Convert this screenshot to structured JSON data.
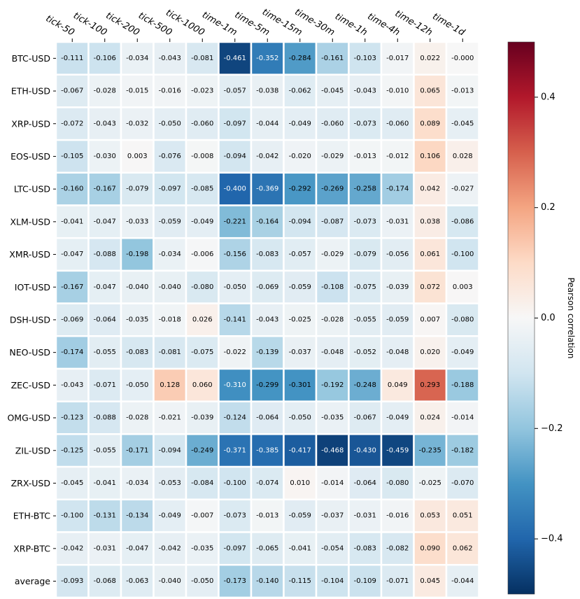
{
  "chart_data": {
    "type": "heatmap",
    "columns": [
      "tick-50",
      "tick-100",
      "tick-200",
      "tick-500",
      "tick-1000",
      "time-1m",
      "time-5m",
      "time-15m",
      "time-30m",
      "time-1h",
      "time-4h",
      "time-12h",
      "time-1d"
    ],
    "rows": [
      "BTC-USD",
      "ETH-USD",
      "XRP-USD",
      "EOS-USD",
      "LTC-USD",
      "XLM-USD",
      "XMR-USD",
      "IOT-USD",
      "DSH-USD",
      "NEO-USD",
      "ZEC-USD",
      "OMG-USD",
      "ZIL-USD",
      "ZRX-USD",
      "ETH-BTC",
      "XRP-BTC",
      "average"
    ],
    "values": [
      [
        -0.111,
        -0.106,
        -0.034,
        -0.043,
        -0.081,
        -0.461,
        -0.352,
        -0.284,
        -0.161,
        -0.103,
        -0.017,
        0.022,
        -0.0
      ],
      [
        -0.067,
        -0.028,
        -0.015,
        -0.016,
        -0.023,
        -0.057,
        -0.038,
        -0.062,
        -0.045,
        -0.043,
        -0.01,
        0.065,
        -0.013
      ],
      [
        -0.072,
        -0.043,
        -0.032,
        -0.05,
        -0.06,
        -0.097,
        -0.044,
        -0.049,
        -0.06,
        -0.073,
        -0.06,
        0.089,
        -0.045
      ],
      [
        -0.105,
        -0.03,
        0.003,
        -0.076,
        -0.008,
        -0.094,
        -0.042,
        -0.02,
        -0.029,
        -0.013,
        -0.012,
        0.106,
        0.028
      ],
      [
        -0.16,
        -0.167,
        -0.079,
        -0.097,
        -0.085,
        -0.4,
        -0.369,
        -0.292,
        -0.269,
        -0.258,
        -0.174,
        0.042,
        -0.027
      ],
      [
        -0.041,
        -0.047,
        -0.033,
        -0.059,
        -0.049,
        -0.221,
        -0.164,
        -0.094,
        -0.087,
        -0.073,
        -0.031,
        0.038,
        -0.086
      ],
      [
        -0.047,
        -0.088,
        -0.198,
        -0.034,
        -0.006,
        -0.156,
        -0.083,
        -0.057,
        -0.029,
        -0.079,
        -0.056,
        0.061,
        -0.1
      ],
      [
        -0.167,
        -0.047,
        -0.04,
        -0.04,
        -0.08,
        -0.05,
        -0.069,
        -0.059,
        -0.108,
        -0.075,
        -0.039,
        0.072,
        0.003
      ],
      [
        -0.069,
        -0.064,
        -0.035,
        -0.018,
        0.026,
        -0.141,
        -0.043,
        -0.025,
        -0.028,
        -0.055,
        -0.059,
        0.007,
        -0.08
      ],
      [
        -0.174,
        -0.055,
        -0.083,
        -0.081,
        -0.075,
        -0.022,
        -0.139,
        -0.037,
        -0.048,
        -0.052,
        -0.048,
        0.02,
        -0.049
      ],
      [
        -0.043,
        -0.071,
        -0.05,
        0.128,
        0.06,
        -0.31,
        -0.299,
        -0.301,
        -0.192,
        -0.248,
        0.049,
        0.293,
        -0.188
      ],
      [
        -0.123,
        -0.088,
        -0.028,
        -0.021,
        -0.039,
        -0.124,
        -0.064,
        -0.05,
        -0.035,
        -0.067,
        -0.049,
        0.024,
        -0.014
      ],
      [
        -0.125,
        -0.055,
        -0.171,
        -0.094,
        -0.249,
        -0.371,
        -0.385,
        -0.417,
        -0.468,
        -0.43,
        -0.459,
        -0.235,
        -0.182
      ],
      [
        -0.045,
        -0.041,
        -0.034,
        -0.053,
        -0.084,
        -0.1,
        -0.074,
        0.01,
        -0.014,
        -0.064,
        -0.08,
        -0.025,
        -0.07
      ],
      [
        -0.1,
        -0.131,
        -0.134,
        -0.049,
        -0.007,
        -0.073,
        -0.013,
        -0.059,
        -0.037,
        -0.031,
        -0.016,
        0.053,
        0.051
      ],
      [
        -0.042,
        -0.031,
        -0.047,
        -0.042,
        -0.035,
        -0.097,
        -0.065,
        -0.041,
        -0.054,
        -0.083,
        -0.082,
        0.09,
        0.062
      ],
      [
        -0.093,
        -0.068,
        -0.063,
        -0.04,
        -0.05,
        -0.173,
        -0.14,
        -0.115,
        -0.104,
        -0.109,
        -0.071,
        0.045,
        -0.044
      ]
    ],
    "value_labels": [
      [
        "-0.111",
        "-0.106",
        "-0.034",
        "-0.043",
        "-0.081",
        "-0.461",
        "-0.352",
        "-0.284",
        "-0.161",
        "-0.103",
        "-0.017",
        "0.022",
        "-0.000"
      ],
      [
        "-0.067",
        "-0.028",
        "-0.015",
        "-0.016",
        "-0.023",
        "-0.057",
        "-0.038",
        "-0.062",
        "-0.045",
        "-0.043",
        "-0.010",
        "0.065",
        "-0.013"
      ],
      [
        "-0.072",
        "-0.043",
        "-0.032",
        "-0.050",
        "-0.060",
        "-0.097",
        "-0.044",
        "-0.049",
        "-0.060",
        "-0.073",
        "-0.060",
        "0.089",
        "-0.045"
      ],
      [
        "-0.105",
        "-0.030",
        "0.003",
        "-0.076",
        "-0.008",
        "-0.094",
        "-0.042",
        "-0.020",
        "-0.029",
        "-0.013",
        "-0.012",
        "0.106",
        "0.028"
      ],
      [
        "-0.160",
        "-0.167",
        "-0.079",
        "-0.097",
        "-0.085",
        "-0.400",
        "-0.369",
        "-0.292",
        "-0.269",
        "-0.258",
        "-0.174",
        "0.042",
        "-0.027"
      ],
      [
        "-0.041",
        "-0.047",
        "-0.033",
        "-0.059",
        "-0.049",
        "-0.221",
        "-0.164",
        "-0.094",
        "-0.087",
        "-0.073",
        "-0.031",
        "0.038",
        "-0.086"
      ],
      [
        "-0.047",
        "-0.088",
        "-0.198",
        "-0.034",
        "-0.006",
        "-0.156",
        "-0.083",
        "-0.057",
        "-0.029",
        "-0.079",
        "-0.056",
        "0.061",
        "-0.100"
      ],
      [
        "-0.167",
        "-0.047",
        "-0.040",
        "-0.040",
        "-0.080",
        "-0.050",
        "-0.069",
        "-0.059",
        "-0.108",
        "-0.075",
        "-0.039",
        "0.072",
        "0.003"
      ],
      [
        "-0.069",
        "-0.064",
        "-0.035",
        "-0.018",
        "0.026",
        "-0.141",
        "-0.043",
        "-0.025",
        "-0.028",
        "-0.055",
        "-0.059",
        "0.007",
        "-0.080"
      ],
      [
        "-0.174",
        "-0.055",
        "-0.083",
        "-0.081",
        "-0.075",
        "-0.022",
        "-0.139",
        "-0.037",
        "-0.048",
        "-0.052",
        "-0.048",
        "0.020",
        "-0.049"
      ],
      [
        "-0.043",
        "-0.071",
        "-0.050",
        "0.128",
        "0.060",
        "-0.310",
        "-0.299",
        "-0.301",
        "-0.192",
        "-0.248",
        "0.049",
        "0.293",
        "-0.188"
      ],
      [
        "-0.123",
        "-0.088",
        "-0.028",
        "-0.021",
        "-0.039",
        "-0.124",
        "-0.064",
        "-0.050",
        "-0.035",
        "-0.067",
        "-0.049",
        "0.024",
        "-0.014"
      ],
      [
        "-0.125",
        "-0.055",
        "-0.171",
        "-0.094",
        "-0.249",
        "-0.371",
        "-0.385",
        "-0.417",
        "-0.468",
        "-0.430",
        "-0.459",
        "-0.235",
        "-0.182"
      ],
      [
        "-0.045",
        "-0.041",
        "-0.034",
        "-0.053",
        "-0.084",
        "-0.100",
        "-0.074",
        "0.010",
        "-0.014",
        "-0.064",
        "-0.080",
        "-0.025",
        "-0.070"
      ],
      [
        "-0.100",
        "-0.131",
        "-0.134",
        "-0.049",
        "-0.007",
        "-0.073",
        "-0.013",
        "-0.059",
        "-0.037",
        "-0.031",
        "-0.016",
        "0.053",
        "0.051"
      ],
      [
        "-0.042",
        "-0.031",
        "-0.047",
        "-0.042",
        "-0.035",
        "-0.097",
        "-0.065",
        "-0.041",
        "-0.054",
        "-0.083",
        "-0.082",
        "0.090",
        "0.062"
      ],
      [
        "-0.093",
        "-0.068",
        "-0.063",
        "-0.040",
        "-0.050",
        "-0.173",
        "-0.140",
        "-0.115",
        "-0.104",
        "-0.109",
        "-0.071",
        "0.045",
        "-0.044"
      ]
    ],
    "colorbar": {
      "label": "Pearson correlation",
      "range": [
        -0.5,
        0.5
      ],
      "ticks": [
        -0.4,
        -0.2,
        0.0,
        0.2,
        0.4
      ],
      "tick_labels": [
        "−0.4",
        "−0.2",
        "0.0",
        "0.2",
        "0.4"
      ],
      "colormap": "RdBu_r",
      "colormap_stops": [
        "#053061",
        "#2166ac",
        "#4393c3",
        "#92c5de",
        "#d1e5f0",
        "#f7f7f7",
        "#fddbc7",
        "#f4a582",
        "#d6604d",
        "#b2182b",
        "#67001f"
      ]
    },
    "grid": false,
    "cell_border_color": "#ffffff"
  }
}
